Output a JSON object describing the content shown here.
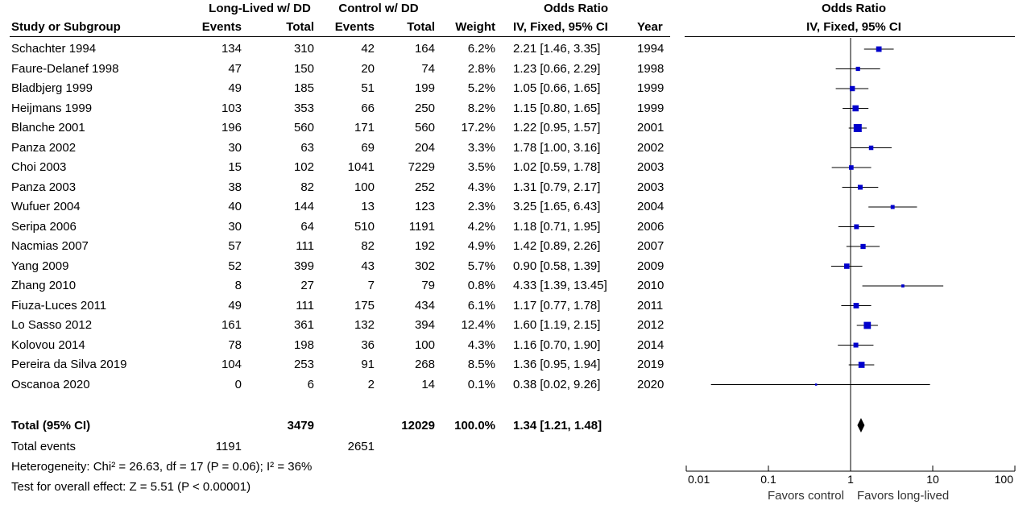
{
  "header": {
    "group1": "Long-Lived w/ DD",
    "group2": "Control w/ DD",
    "or_group": "Odds Ratio",
    "or_plot_title": "Odds Ratio",
    "study": "Study or Subgroup",
    "events1": "Events",
    "total1": "Total",
    "events2": "Events",
    "total2": "Total",
    "weight": "Weight",
    "ci": "IV, Fixed, 95% CI",
    "year": "Year",
    "ci_plot": "IV, Fixed, 95% CI"
  },
  "studies": [
    {
      "name": "Schachter 1994",
      "e1": "134",
      "t1": "310",
      "e2": "42",
      "t2": "164",
      "weight": "6.2%",
      "ci": "2.21 [1.46, 3.35]",
      "year": "1994"
    },
    {
      "name": "Faure-Delanef 1998",
      "e1": "47",
      "t1": "150",
      "e2": "20",
      "t2": "74",
      "weight": "2.8%",
      "ci": "1.23 [0.66, 2.29]",
      "year": "1998"
    },
    {
      "name": "Bladbjerg 1999",
      "e1": "49",
      "t1": "185",
      "e2": "51",
      "t2": "199",
      "weight": "5.2%",
      "ci": "1.05 [0.66, 1.65]",
      "year": "1999"
    },
    {
      "name": "Heijmans 1999",
      "e1": "103",
      "t1": "353",
      "e2": "66",
      "t2": "250",
      "weight": "8.2%",
      "ci": "1.15 [0.80, 1.65]",
      "year": "1999"
    },
    {
      "name": "Blanche 2001",
      "e1": "196",
      "t1": "560",
      "e2": "171",
      "t2": "560",
      "weight": "17.2%",
      "ci": "1.22 [0.95, 1.57]",
      "year": "2001"
    },
    {
      "name": "Panza 2002",
      "e1": "30",
      "t1": "63",
      "e2": "69",
      "t2": "204",
      "weight": "3.3%",
      "ci": "1.78 [1.00, 3.16]",
      "year": "2002"
    },
    {
      "name": "Choi 2003",
      "e1": "15",
      "t1": "102",
      "e2": "1041",
      "t2": "7229",
      "weight": "3.5%",
      "ci": "1.02 [0.59, 1.78]",
      "year": "2003"
    },
    {
      "name": "Panza 2003",
      "e1": "38",
      "t1": "82",
      "e2": "100",
      "t2": "252",
      "weight": "4.3%",
      "ci": "1.31 [0.79, 2.17]",
      "year": "2003"
    },
    {
      "name": "Wufuer 2004",
      "e1": "40",
      "t1": "144",
      "e2": "13",
      "t2": "123",
      "weight": "2.3%",
      "ci": "3.25 [1.65, 6.43]",
      "year": "2004"
    },
    {
      "name": "Seripa 2006",
      "e1": "30",
      "t1": "64",
      "e2": "510",
      "t2": "1191",
      "weight": "4.2%",
      "ci": "1.18 [0.71, 1.95]",
      "year": "2006"
    },
    {
      "name": "Nacmias 2007",
      "e1": "57",
      "t1": "111",
      "e2": "82",
      "t2": "192",
      "weight": "4.9%",
      "ci": "1.42 [0.89, 2.26]",
      "year": "2007"
    },
    {
      "name": "Yang 2009",
      "e1": "52",
      "t1": "399",
      "e2": "43",
      "t2": "302",
      "weight": "5.7%",
      "ci": "0.90 [0.58, 1.39]",
      "year": "2009"
    },
    {
      "name": "Zhang 2010",
      "e1": "8",
      "t1": "27",
      "e2": "7",
      "t2": "79",
      "weight": "0.8%",
      "ci": "4.33 [1.39, 13.45]",
      "year": "2010"
    },
    {
      "name": "Fiuza-Luces 2011",
      "e1": "49",
      "t1": "111",
      "e2": "175",
      "t2": "434",
      "weight": "6.1%",
      "ci": "1.17 [0.77, 1.78]",
      "year": "2011"
    },
    {
      "name": "Lo Sasso 2012",
      "e1": "161",
      "t1": "361",
      "e2": "132",
      "t2": "394",
      "weight": "12.4%",
      "ci": "1.60 [1.19, 2.15]",
      "year": "2012"
    },
    {
      "name": "Kolovou 2014",
      "e1": "78",
      "t1": "198",
      "e2": "36",
      "t2": "100",
      "weight": "4.3%",
      "ci": "1.16 [0.70, 1.90]",
      "year": "2014"
    },
    {
      "name": "Pereira da Silva 2019",
      "e1": "104",
      "t1": "253",
      "e2": "91",
      "t2": "268",
      "weight": "8.5%",
      "ci": "1.36 [0.95, 1.94]",
      "year": "2019"
    },
    {
      "name": "Oscanoa 2020",
      "e1": "0",
      "t1": "6",
      "e2": "2",
      "t2": "14",
      "weight": "0.1%",
      "ci": "0.38 [0.02, 9.26]",
      "year": "2020"
    }
  ],
  "total": {
    "label": "Total (95% CI)",
    "t1": "3479",
    "t2": "12029",
    "weight": "100.0%",
    "ci": "1.34 [1.21, 1.48]"
  },
  "total_events": {
    "label": "Total events",
    "e1": "1191",
    "e2": "2651"
  },
  "heterogeneity": "Heterogeneity: Chi² = 26.63, df = 17 (P = 0.06); I² = 36%",
  "overall_effect": "Test for overall effect: Z = 5.51 (P < 0.00001)",
  "axis": {
    "favors_left": "Favors control",
    "favors_right": "Favors long-lived"
  },
  "chart_data": {
    "type": "forest",
    "scale": "log",
    "xlim": [
      0.01,
      100
    ],
    "ticks": [
      0.01,
      0.1,
      1,
      10,
      100
    ],
    "tick_labels": [
      "0.01",
      "0.1",
      "1",
      "10",
      "100"
    ],
    "reference_line": 1,
    "studies": [
      {
        "or": 2.21,
        "lo": 1.46,
        "hi": 3.35,
        "weight": 6.2
      },
      {
        "or": 1.23,
        "lo": 0.66,
        "hi": 2.29,
        "weight": 2.8
      },
      {
        "or": 1.05,
        "lo": 0.66,
        "hi": 1.65,
        "weight": 5.2
      },
      {
        "or": 1.15,
        "lo": 0.8,
        "hi": 1.65,
        "weight": 8.2
      },
      {
        "or": 1.22,
        "lo": 0.95,
        "hi": 1.57,
        "weight": 17.2
      },
      {
        "or": 1.78,
        "lo": 1.0,
        "hi": 3.16,
        "weight": 3.3
      },
      {
        "or": 1.02,
        "lo": 0.59,
        "hi": 1.78,
        "weight": 3.5
      },
      {
        "or": 1.31,
        "lo": 0.79,
        "hi": 2.17,
        "weight": 4.3
      },
      {
        "or": 3.25,
        "lo": 1.65,
        "hi": 6.43,
        "weight": 2.3
      },
      {
        "or": 1.18,
        "lo": 0.71,
        "hi": 1.95,
        "weight": 4.2
      },
      {
        "or": 1.42,
        "lo": 0.89,
        "hi": 2.26,
        "weight": 4.9
      },
      {
        "or": 0.9,
        "lo": 0.58,
        "hi": 1.39,
        "weight": 5.7
      },
      {
        "or": 4.33,
        "lo": 1.39,
        "hi": 13.45,
        "weight": 0.8
      },
      {
        "or": 1.17,
        "lo": 0.77,
        "hi": 1.78,
        "weight": 6.1
      },
      {
        "or": 1.6,
        "lo": 1.19,
        "hi": 2.15,
        "weight": 12.4
      },
      {
        "or": 1.16,
        "lo": 0.7,
        "hi": 1.9,
        "weight": 4.3
      },
      {
        "or": 1.36,
        "lo": 0.95,
        "hi": 1.94,
        "weight": 8.5
      },
      {
        "or": 0.38,
        "lo": 0.02,
        "hi": 9.26,
        "weight": 0.1
      }
    ],
    "overall": {
      "or": 1.34,
      "lo": 1.21,
      "hi": 1.48
    },
    "colors": {
      "marker": "#0000cc",
      "line": "#000000"
    }
  }
}
